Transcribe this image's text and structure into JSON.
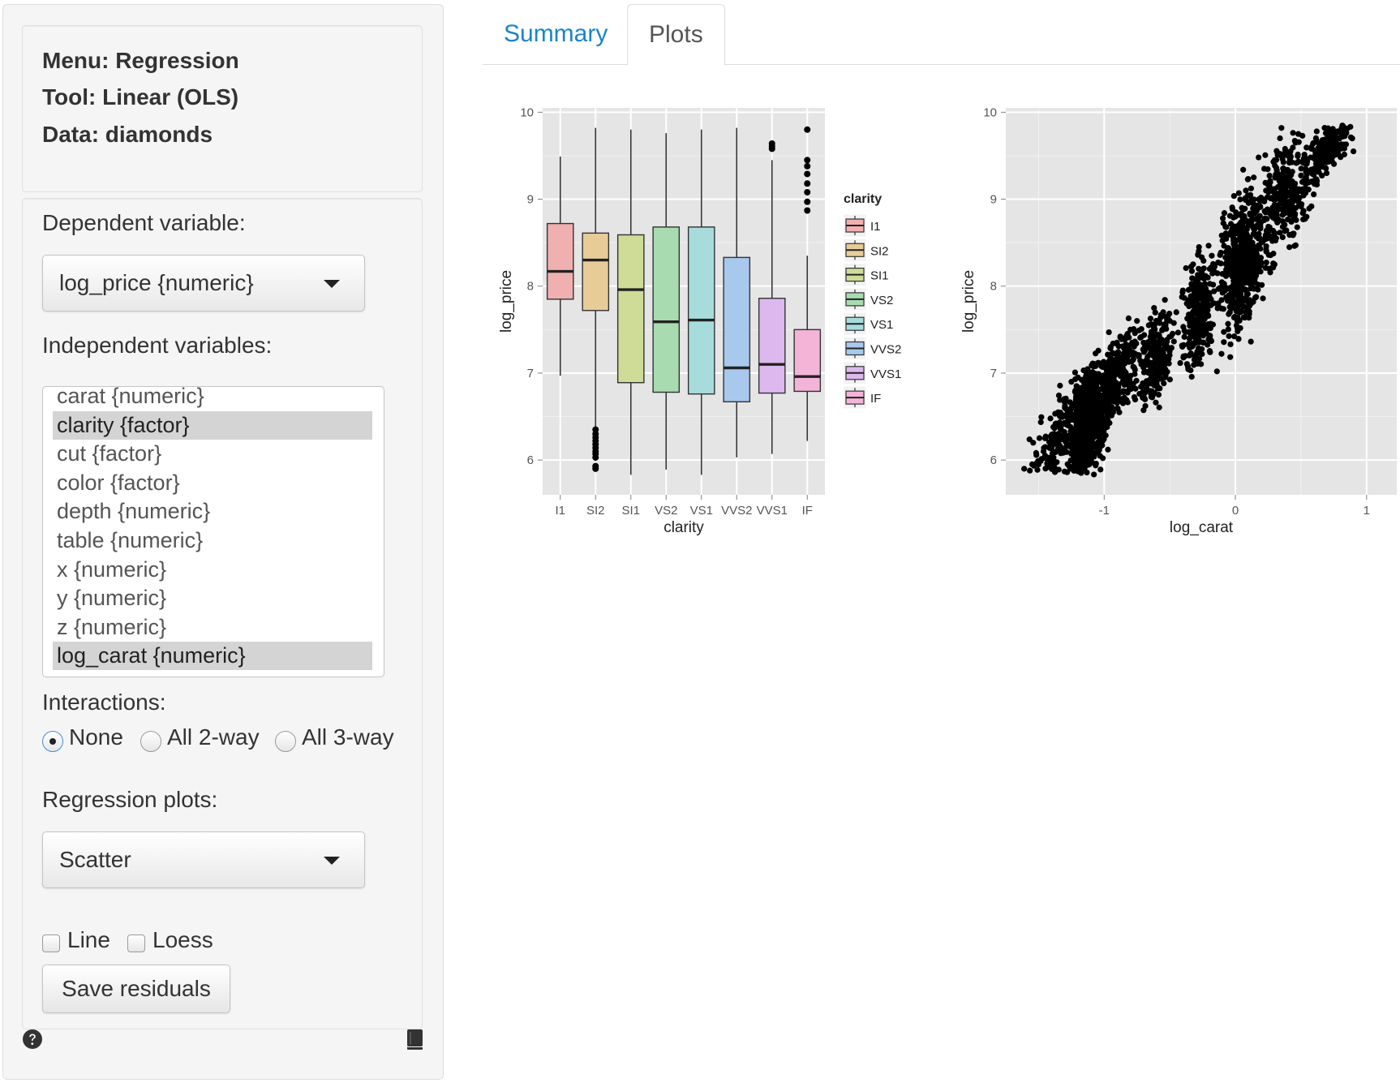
{
  "sidebar": {
    "info": {
      "menu": "Menu: Regression",
      "tool": "Tool: Linear (OLS)",
      "data": "Data: diamonds"
    },
    "dependent": {
      "label": "Dependent variable:",
      "value": "log_price {numeric}"
    },
    "independent": {
      "label": "Independent variables:",
      "options": [
        {
          "label": "carat {numeric}",
          "selected": false
        },
        {
          "label": "clarity {factor}",
          "selected": true
        },
        {
          "label": "cut {factor}",
          "selected": false
        },
        {
          "label": "color {factor}",
          "selected": false
        },
        {
          "label": "depth {numeric}",
          "selected": false
        },
        {
          "label": "table {numeric}",
          "selected": false
        },
        {
          "label": "x {numeric}",
          "selected": false
        },
        {
          "label": "y {numeric}",
          "selected": false
        },
        {
          "label": "z {numeric}",
          "selected": false
        },
        {
          "label": "log_carat {numeric}",
          "selected": true
        }
      ]
    },
    "interactions": {
      "label": "Interactions:",
      "options": [
        {
          "label": "None",
          "checked": true
        },
        {
          "label": "All 2-way",
          "checked": false
        },
        {
          "label": "All 3-way",
          "checked": false
        }
      ]
    },
    "plots": {
      "label": "Regression plots:",
      "value": "Scatter"
    },
    "checks": {
      "line": "Line",
      "loess": "Loess"
    },
    "save_label": "Save residuals",
    "icons": {
      "help": "question-circle-icon",
      "book": "book-icon"
    }
  },
  "tabs": [
    {
      "label": "Summary",
      "active": false
    },
    {
      "label": "Plots",
      "active": true
    }
  ],
  "chart_data": [
    {
      "type": "box",
      "xlabel": "clarity",
      "ylabel": "log_price",
      "ylim": [
        5.6,
        10.05
      ],
      "yticks": [
        6,
        7,
        8,
        9,
        10
      ],
      "grid": true,
      "legend": {
        "title": "clarity",
        "position": "right"
      },
      "categories": [
        "I1",
        "SI2",
        "SI1",
        "VS2",
        "VS1",
        "VVS2",
        "VVS1",
        "IF"
      ],
      "colors": [
        "#f0b0b0",
        "#e8cc98",
        "#cfdc98",
        "#a8dcb0",
        "#a8dcdc",
        "#a8c8ee",
        "#dcb8ee",
        "#f4b4d8"
      ],
      "boxes": [
        {
          "min": 6.97,
          "q1": 7.85,
          "median": 8.17,
          "q3": 8.72,
          "max": 9.49,
          "outliers": []
        },
        {
          "min": 5.99,
          "q1": 7.72,
          "median": 8.3,
          "q3": 8.61,
          "max": 9.82,
          "outliers": [
            5.9,
            5.93,
            6.03,
            6.07,
            6.1,
            6.14,
            6.18,
            6.22,
            6.26,
            6.3,
            6.35
          ]
        },
        {
          "min": 5.83,
          "q1": 6.89,
          "median": 7.96,
          "q3": 8.59,
          "max": 9.8,
          "outliers": []
        },
        {
          "min": 5.89,
          "q1": 6.78,
          "median": 7.59,
          "q3": 8.68,
          "max": 9.76,
          "outliers": []
        },
        {
          "min": 5.83,
          "q1": 6.76,
          "median": 7.61,
          "q3": 8.68,
          "max": 9.8,
          "outliers": []
        },
        {
          "min": 6.03,
          "q1": 6.67,
          "median": 7.06,
          "q3": 8.33,
          "max": 9.82,
          "outliers": []
        },
        {
          "min": 6.07,
          "q1": 6.77,
          "median": 7.1,
          "q3": 7.86,
          "max": 9.45,
          "outliers": [
            9.58,
            9.61,
            9.64
          ]
        },
        {
          "min": 6.22,
          "q1": 6.79,
          "median": 6.96,
          "q3": 7.5,
          "max": 8.35,
          "outliers": [
            8.87,
            8.97,
            9.08,
            9.18,
            9.29,
            9.38,
            9.45,
            9.8
          ]
        }
      ]
    },
    {
      "type": "scatter",
      "xlabel": "log_carat",
      "ylabel": "log_price",
      "xlim": [
        -1.75,
        1.23
      ],
      "ylim": [
        5.6,
        10.05
      ],
      "xticks": [
        -1,
        0,
        1
      ],
      "yticks": [
        6,
        7,
        8,
        9,
        10
      ],
      "grid": true,
      "points": [
        [
          -1.61,
          5.9
        ],
        [
          -1.5,
          5.95
        ],
        [
          -1.45,
          6.05
        ],
        [
          -1.45,
          6.15
        ],
        [
          -1.45,
          6.25
        ],
        [
          -1.38,
          5.92
        ],
        [
          -1.38,
          6.3
        ],
        [
          -1.33,
          6.1
        ],
        [
          -1.28,
          6.4
        ],
        [
          -1.25,
          6.6
        ],
        [
          -1.22,
          6.8
        ],
        [
          -1.2,
          6.95
        ],
        [
          -1.18,
          6.2
        ],
        [
          -1.15,
          6.5
        ],
        [
          -1.12,
          6.75
        ],
        [
          -1.1,
          7.0
        ],
        [
          -1.15,
          5.9
        ],
        [
          -1.05,
          6.3
        ],
        [
          -1.0,
          6.9
        ],
        [
          -0.98,
          7.1
        ],
        [
          -0.95,
          7.3
        ],
        [
          -0.92,
          7.0
        ],
        [
          -0.9,
          7.2
        ],
        [
          -0.85,
          7.4
        ],
        [
          -0.8,
          7.5
        ],
        [
          -0.75,
          7.6
        ],
        [
          -0.7,
          7.35
        ],
        [
          -0.66,
          7.55
        ],
        [
          -0.62,
          7.75
        ],
        [
          -0.55,
          7.7
        ],
        [
          -0.5,
          7.6
        ],
        [
          -0.45,
          7.7
        ],
        [
          -0.4,
          7.95
        ],
        [
          -0.37,
          7.8
        ],
        [
          -0.32,
          8.0
        ],
        [
          -0.28,
          8.2
        ],
        [
          -0.3,
          7.55
        ],
        [
          -0.22,
          8.1
        ],
        [
          -0.18,
          8.35
        ],
        [
          -0.12,
          7.75
        ],
        [
          -0.1,
          8.0
        ],
        [
          -0.06,
          8.3
        ],
        [
          -0.02,
          8.6
        ],
        [
          0.0,
          8.8
        ],
        [
          0.02,
          8.4
        ],
        [
          0.05,
          8.9
        ],
        [
          0.08,
          9.1
        ],
        [
          0.1,
          8.7
        ],
        [
          0.14,
          9.25
        ],
        [
          0.18,
          9.0
        ],
        [
          0.22,
          9.35
        ],
        [
          0.26,
          9.15
        ],
        [
          0.3,
          9.45
        ],
        [
          0.34,
          9.7
        ],
        [
          0.4,
          9.2
        ],
        [
          0.42,
          9.55
        ],
        [
          0.48,
          9.75
        ],
        [
          0.52,
          9.45
        ],
        [
          0.58,
          9.6
        ],
        [
          0.62,
          9.78
        ],
        [
          0.68,
          9.82
        ],
        [
          0.72,
          9.65
        ],
        [
          0.78,
          9.78
        ],
        [
          0.82,
          9.72
        ],
        [
          0.9,
          9.55
        ],
        [
          -1.3,
          6.6
        ],
        [
          -1.25,
          6.9
        ],
        [
          -1.35,
          6.55
        ],
        [
          -1.2,
          6.45
        ],
        [
          -1.08,
          6.65
        ],
        [
          -1.0,
          6.45
        ],
        [
          -0.95,
          6.85
        ]
      ],
      "clusters": [
        {
          "cx": -1.12,
          "cy": 6.45,
          "sx": 0.07,
          "sy": 0.28,
          "n": 700
        },
        {
          "cx": -1.35,
          "cy": 6.25,
          "sx": 0.1,
          "sy": 0.2,
          "n": 150
        },
        {
          "cx": -0.9,
          "cy": 6.95,
          "sx": 0.09,
          "sy": 0.22,
          "n": 250
        },
        {
          "cx": -0.6,
          "cy": 7.2,
          "sx": 0.06,
          "sy": 0.25,
          "n": 230
        },
        {
          "cx": -0.28,
          "cy": 7.7,
          "sx": 0.06,
          "sy": 0.3,
          "n": 260
        },
        {
          "cx": 0.05,
          "cy": 8.3,
          "sx": 0.08,
          "sy": 0.38,
          "n": 500
        },
        {
          "cx": 0.38,
          "cy": 9.05,
          "sx": 0.1,
          "sy": 0.3,
          "n": 300
        },
        {
          "cx": 0.72,
          "cy": 9.6,
          "sx": 0.08,
          "sy": 0.13,
          "n": 180
        }
      ]
    }
  ]
}
